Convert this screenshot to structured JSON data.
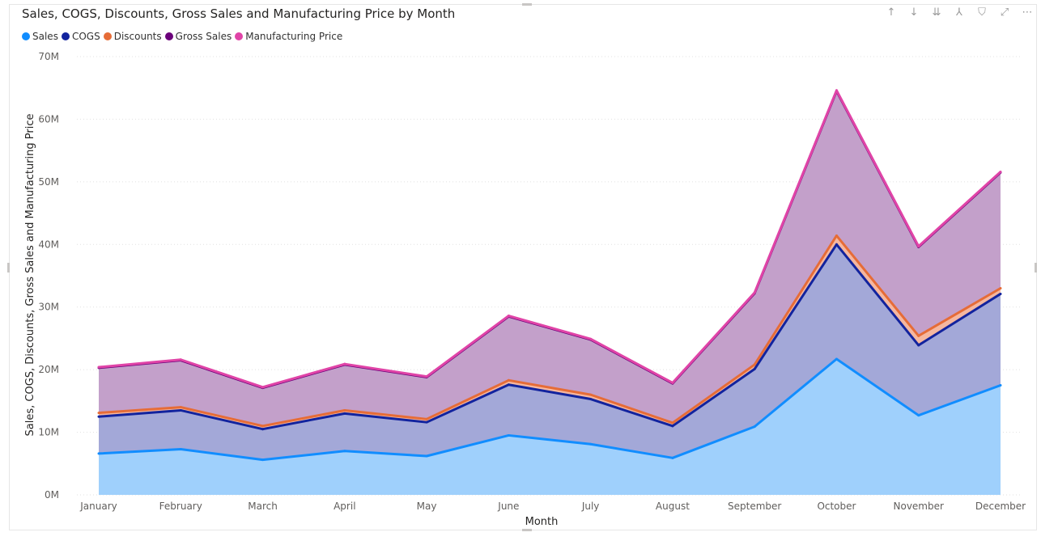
{
  "visual": {
    "title": "Sales, COGS, Discounts, Gross Sales and Manufacturing Price by Month",
    "toolbar": [
      {
        "name": "sort-up-icon",
        "glyph": "↑"
      },
      {
        "name": "sort-down-icon",
        "glyph": "↓"
      },
      {
        "name": "drill-all-icon",
        "glyph": "⇊"
      },
      {
        "name": "hierarchy-icon",
        "glyph": "⅄"
      },
      {
        "name": "filter-icon",
        "glyph": "⛉"
      },
      {
        "name": "focus-mode-icon",
        "glyph": "⤢"
      },
      {
        "name": "more-options-icon",
        "glyph": "⋯"
      }
    ]
  },
  "chart_data": {
    "type": "area",
    "title": "Sales, COGS, Discounts, Gross Sales and Manufacturing Price by Month",
    "xlabel": "Month",
    "ylabel": "Sales, COGS, Discounts, Gross Sales and Manufacturing Price",
    "ylim": [
      0,
      70000000
    ],
    "y_ticks": [
      {
        "value": 0,
        "label": "0M"
      },
      {
        "value": 10000000,
        "label": "10M"
      },
      {
        "value": 20000000,
        "label": "20M"
      },
      {
        "value": 30000000,
        "label": "30M"
      },
      {
        "value": 40000000,
        "label": "40M"
      },
      {
        "value": 50000000,
        "label": "50M"
      },
      {
        "value": 60000000,
        "label": "60M"
      },
      {
        "value": 70000000,
        "label": "70M"
      }
    ],
    "grid": true,
    "legend_position": "top-left",
    "stacked": true,
    "categories": [
      "January",
      "February",
      "March",
      "April",
      "May",
      "June",
      "July",
      "August",
      "September",
      "October",
      "November",
      "December"
    ],
    "series": [
      {
        "name": "Sales",
        "color": "#118DFF",
        "fill": "#9FD0FC",
        "values": [
          6.6,
          7.3,
          5.6,
          7.0,
          6.2,
          9.5,
          8.1,
          5.9,
          10.9,
          21.7,
          12.7,
          17.5
        ]
      },
      {
        "name": "COGS",
        "color": "#12239E",
        "fill": "#A3A8D8",
        "values": [
          5.9,
          6.2,
          4.9,
          6.0,
          5.4,
          8.1,
          7.2,
          5.1,
          9.2,
          18.3,
          11.2,
          14.6
        ]
      },
      {
        "name": "Discounts",
        "color": "#E66C37",
        "fill": "#F5B7A0",
        "values": [
          0.6,
          0.5,
          0.5,
          0.5,
          0.5,
          0.7,
          0.7,
          0.5,
          0.7,
          1.4,
          1.5,
          0.9
        ]
      },
      {
        "name": "Gross Sales",
        "color": "#6B007B",
        "fill": "#C3A0CA",
        "values": [
          7.2,
          7.5,
          6.1,
          7.3,
          6.7,
          10.2,
          8.8,
          6.3,
          11.4,
          23.1,
          14.2,
          18.5
        ]
      },
      {
        "name": "Manufacturing Price",
        "color": "#E044A7",
        "fill": "#E9A3CF",
        "values": [
          0.1,
          0.1,
          0.1,
          0.1,
          0.1,
          0.1,
          0.1,
          0.1,
          0.1,
          0.1,
          0.1,
          0.1
        ]
      }
    ],
    "value_units": "M"
  }
}
